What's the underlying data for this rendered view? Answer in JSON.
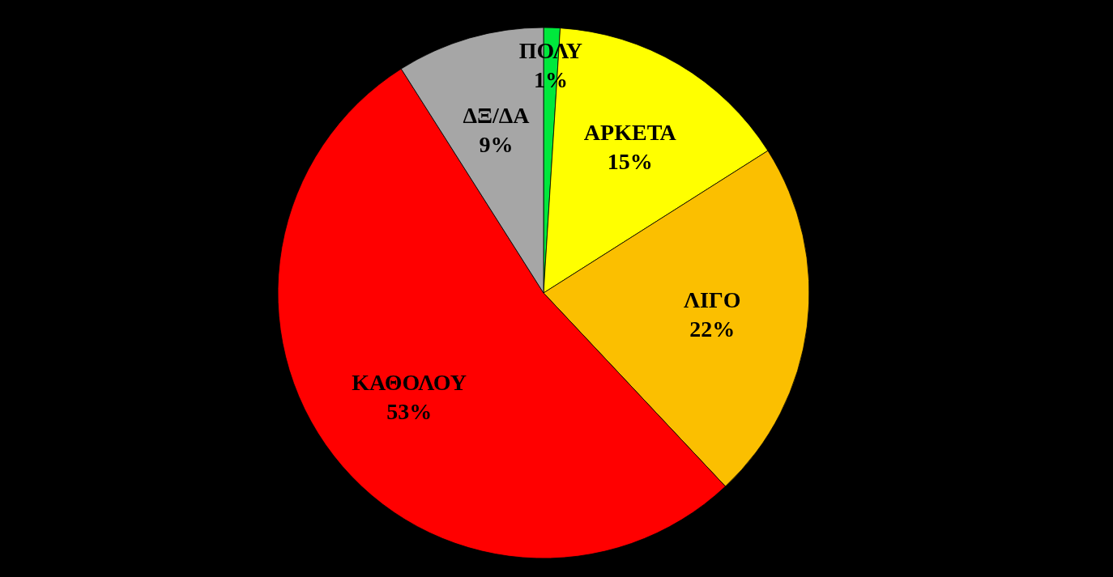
{
  "chart_data": {
    "type": "pie",
    "categories": [
      "ΠΟΛΥ",
      "ΑΡΚΕΤΑ",
      "ΛΙΓΟ",
      "ΚΑΘΟΛΟΥ",
      "ΔΞ/ΔΑ"
    ],
    "values": [
      1,
      15,
      22,
      53,
      9
    ],
    "colors": [
      "#00e83c",
      "#ffff00",
      "#fbbf00",
      "#ff0000",
      "#a6a6a6"
    ],
    "value_labels": [
      "1%",
      "15%",
      "22%",
      "53%",
      "9%"
    ]
  }
}
